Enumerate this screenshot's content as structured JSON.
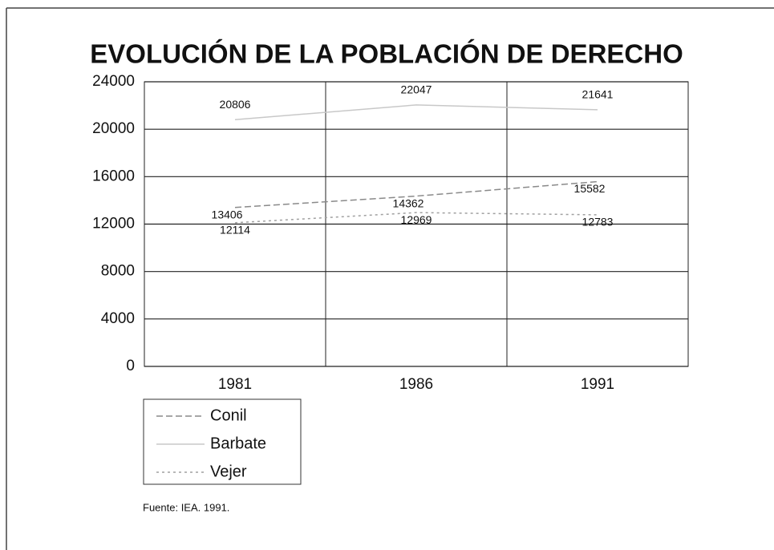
{
  "chart_data": {
    "type": "line",
    "title": "EVOLUCIÓN DE LA POBLACIÓN DE DERECHO",
    "categories": [
      "1981",
      "1986",
      "1991"
    ],
    "series": [
      {
        "name": "Conil",
        "color": "#8a8a8a",
        "values": [
          13406,
          14362,
          15582
        ]
      },
      {
        "name": "Barbate",
        "color": "#c8c8c8",
        "values": [
          20806,
          22047,
          21641
        ]
      },
      {
        "name": "Vejer",
        "color": "#a0a0a0",
        "values": [
          12114,
          12969,
          12783
        ]
      }
    ],
    "ylim": [
      0,
      24000
    ],
    "yticks": [
      0,
      4000,
      8000,
      12000,
      16000,
      20000,
      24000
    ],
    "grid": true,
    "legend": "bottom-left",
    "source": "Fuente: IEA. 1991."
  }
}
